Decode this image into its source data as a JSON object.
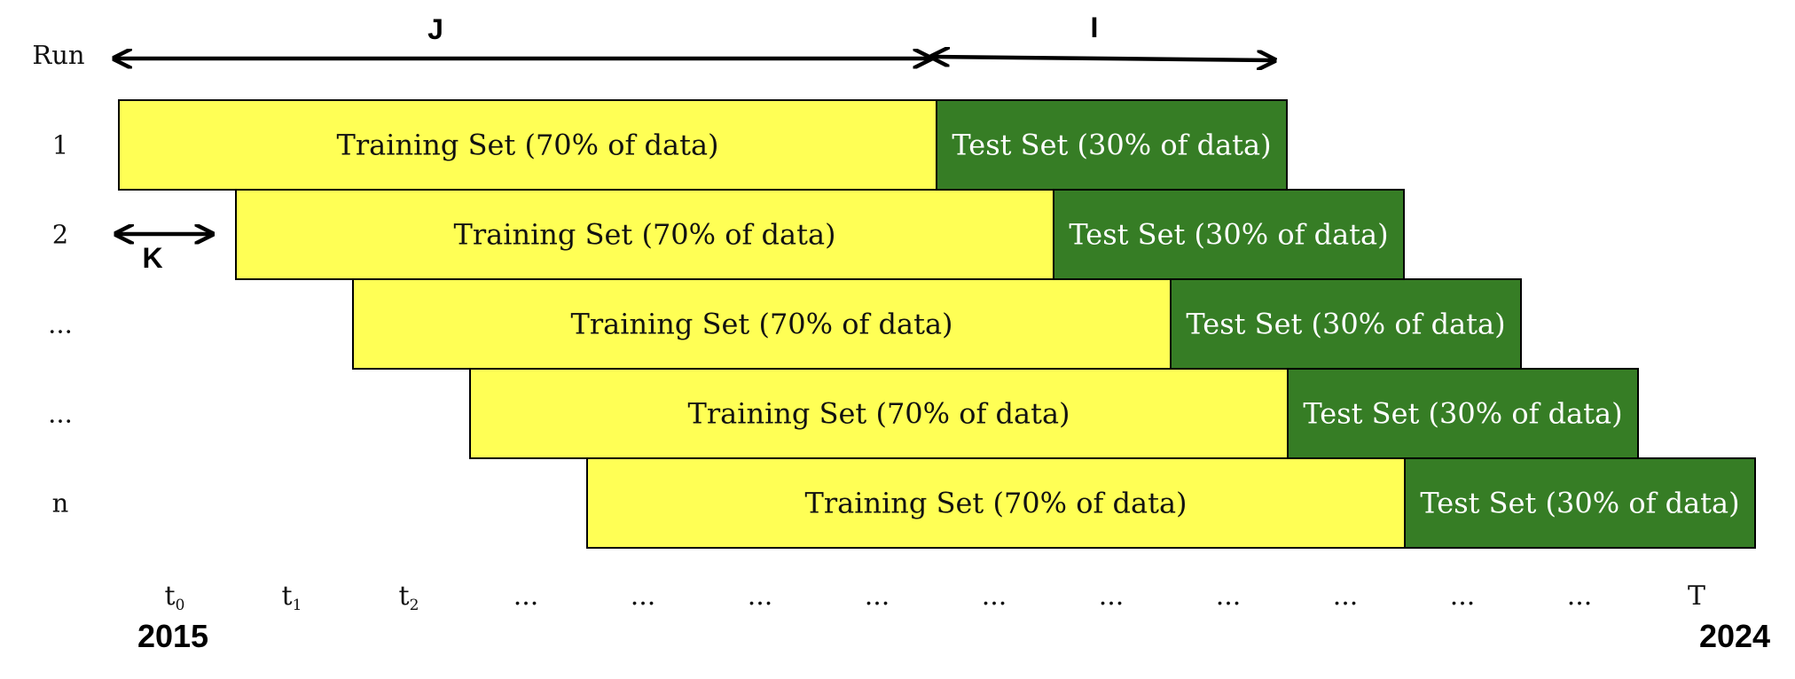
{
  "header": {
    "run_label": "Run",
    "span_j_label": "J",
    "span_i_label": "I",
    "span_k_label": "K"
  },
  "runs": [
    {
      "label": "1",
      "training_label": "Training Set (70% of data)",
      "test_label": "Test Set (30% of data)",
      "offset": 0
    },
    {
      "label": "2",
      "training_label": "Training Set (70% of data)",
      "test_label": "Test Set (30% of data)",
      "offset": 1
    },
    {
      "label": "...",
      "training_label": "Training Set (70% of data)",
      "test_label": "Test Set (30% of data)",
      "offset": 2
    },
    {
      "label": "...",
      "training_label": "Training Set (70% of data)",
      "test_label": "Test Set (30% of data)",
      "offset": 3
    },
    {
      "label": "n",
      "training_label": "Training Set (70% of data)",
      "test_label": "Test Set (30% of data)",
      "offset": 4
    }
  ],
  "timeline": [
    {
      "main": "t",
      "sub": "0"
    },
    {
      "main": "t",
      "sub": "1"
    },
    {
      "main": "t",
      "sub": "2"
    },
    {
      "main": "...",
      "sub": ""
    },
    {
      "main": "...",
      "sub": ""
    },
    {
      "main": "...",
      "sub": ""
    },
    {
      "main": "...",
      "sub": ""
    },
    {
      "main": "...",
      "sub": ""
    },
    {
      "main": "...",
      "sub": ""
    },
    {
      "main": "...",
      "sub": ""
    },
    {
      "main": "...",
      "sub": ""
    },
    {
      "main": "...",
      "sub": ""
    },
    {
      "main": "...",
      "sub": ""
    },
    {
      "main": "T",
      "sub": ""
    }
  ],
  "years": {
    "start": "2015",
    "end": "2024"
  },
  "colors": {
    "training": "#ffff55",
    "test": "#367d25",
    "training_text": "#111111",
    "test_text": "#ffffff"
  }
}
